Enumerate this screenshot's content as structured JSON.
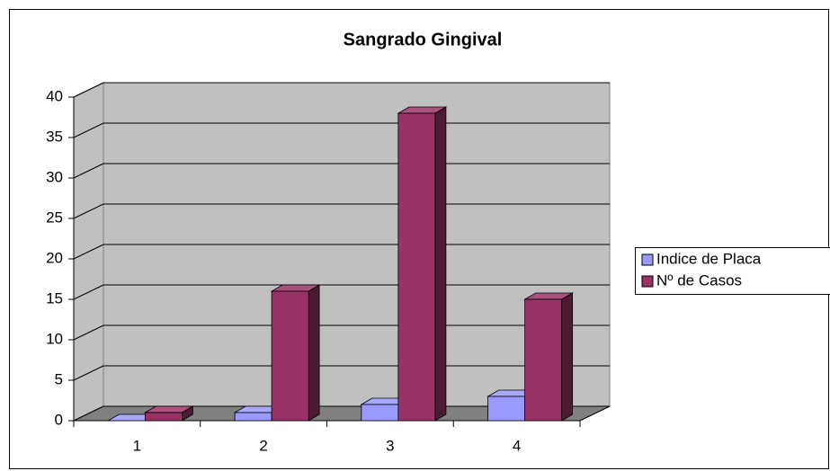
{
  "chart_data": {
    "type": "bar3d",
    "title": "Sangrado Gingival",
    "categories": [
      "1",
      "2",
      "3",
      "4"
    ],
    "series": [
      {
        "name": "Indice de Placa",
        "color": "#9999ff",
        "values": [
          0,
          1,
          2,
          3
        ]
      },
      {
        "name": "Nº de Casos",
        "color": "#993366",
        "values": [
          1,
          16,
          38,
          15
        ]
      }
    ],
    "ylim": [
      0,
      40
    ],
    "yticks": [
      0,
      5,
      10,
      15,
      20,
      25,
      30,
      35,
      40
    ],
    "grid": true,
    "legend": "right"
  }
}
